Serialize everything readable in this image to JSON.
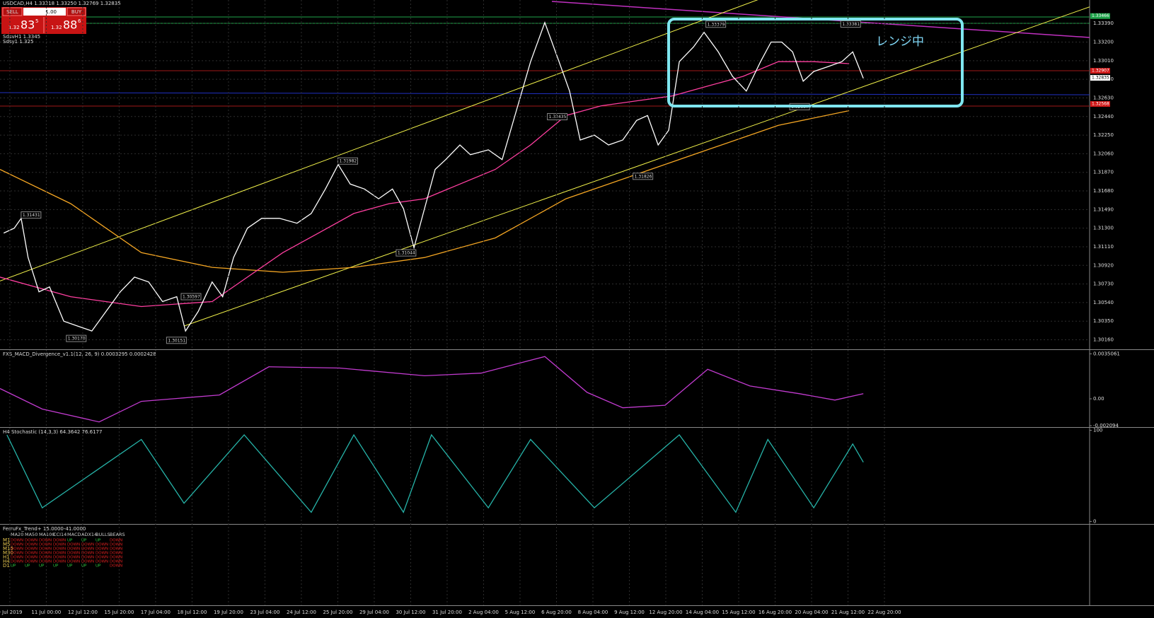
{
  "header": {
    "symbol_line": "USDCAD,H4  1.33218 1.33250 1.32769 1.32835"
  },
  "trade_panel": {
    "sell": "SELL",
    "lot": "1.00",
    "buy": "BUY",
    "sell_price": {
      "big": "1.32",
      "pips": "83",
      "frac": "5"
    },
    "buy_price": {
      "big": "1.32",
      "pips": "88",
      "frac": "6"
    }
  },
  "indicator_labels": [
    "SdsvH1 1.3345",
    "Sdsy1 1.325"
  ],
  "chart_data": [
    {
      "type": "line",
      "categories": [
        "9 Jul 2019",
        "11 Jul 00:00",
        "12 Jul 12:00",
        "15 Jul 20:00",
        "17 Jul 04:00",
        "18 Jul 12:00",
        "19 Jul 20:00",
        "23 Jul 04:00",
        "24 Jul 12:00",
        "25 Jul 20:00",
        "29 Jul 04:00",
        "30 Jul 12:00",
        "31 Jul 20:00",
        "2 Aug 04:00",
        "5 Aug 12:00",
        "6 Aug 20:00",
        "8 Aug 04:00",
        "9 Aug 12:00",
        "12 Aug 20:00",
        "14 Aug 04:00",
        "15 Aug 12:00",
        "16 Aug 20:00",
        "20 Aug 04:00",
        "21 Aug 12:00",
        "22 Aug 20:00"
      ],
      "xlim": [
        -0.27,
        29.63
      ],
      "ylim": [
        1.3007,
        1.3363
      ],
      "yticks": [
        {
          "value": 1.3339,
          "label": "1.33390"
        },
        {
          "value": 1.332,
          "label": "1.33200"
        },
        {
          "value": 1.3301,
          "label": "1.33010"
        },
        {
          "value": 1.3282,
          "label": "1.32820"
        },
        {
          "value": 1.3263,
          "label": "1.32630"
        },
        {
          "value": 1.3244,
          "label": "1.32440"
        },
        {
          "value": 1.3225,
          "label": "1.32250"
        },
        {
          "value": 1.3206,
          "label": "1.32060"
        },
        {
          "value": 1.3187,
          "label": "1.31870"
        },
        {
          "value": 1.3168,
          "label": "1.31680"
        },
        {
          "value": 1.3149,
          "label": "1.31490"
        },
        {
          "value": 1.313,
          "label": "1.31300"
        },
        {
          "value": 1.3111,
          "label": "1.31110"
        },
        {
          "value": 1.3092,
          "label": "1.30920"
        },
        {
          "value": 1.3073,
          "label": "1.30730"
        },
        {
          "value": 1.3054,
          "label": "1.30540"
        },
        {
          "value": 1.3035,
          "label": "1.30350"
        },
        {
          "value": 1.3016,
          "label": "1.30160"
        }
      ],
      "grid": true,
      "series": [
        {
          "color": "#f5a623",
          "x": [
            -0.27,
            1.67,
            3.61,
            5.55,
            7.49,
            9.44,
            11.38,
            13.32,
            15.26,
            17.2,
            19.14,
            21.09,
            23.03
          ],
          "values": [
            1.319,
            1.3155,
            1.3105,
            1.309,
            1.3085,
            1.309,
            1.31,
            1.312,
            1.316,
            1.3185,
            1.321,
            1.3235,
            1.325
          ]
        },
        {
          "color": "#ff3fa0",
          "x": [
            -0.27,
            1.67,
            3.61,
            5.55,
            6.52,
            7.49,
            8.47,
            9.44,
            10.41,
            11.38,
            12.35,
            13.32,
            14.29,
            15.26,
            16.23,
            17.2,
            18.17,
            19.14,
            20.12,
            21.09,
            22.06,
            23.03
          ],
          "values": [
            1.308,
            1.306,
            1.305,
            1.3055,
            1.308,
            1.3105,
            1.3125,
            1.3145,
            1.3155,
            1.316,
            1.3175,
            1.319,
            1.3215,
            1.3245,
            1.3255,
            1.326,
            1.3265,
            1.3275,
            1.3285,
            1.33,
            1.33,
            1.3298
          ]
        },
        {
          "color": "#ffffff",
          "x": [
            -0.17,
            0.12,
            0.31,
            0.5,
            0.8,
            1.09,
            1.48,
            1.86,
            2.25,
            2.64,
            3.03,
            3.42,
            3.81,
            4.19,
            4.58,
            4.82,
            5.17,
            5.55,
            5.84,
            6.14,
            6.52,
            6.91,
            7.4,
            7.88,
            8.27,
            8.66,
            9.01,
            9.34,
            9.73,
            10.12,
            10.5,
            10.8,
            11.09,
            11.38,
            11.67,
            11.96,
            12.35,
            12.64,
            13.13,
            13.51,
            13.9,
            14.29,
            14.68,
            15.07,
            15.36,
            15.65,
            16.04,
            16.43,
            16.82,
            17.2,
            17.5,
            17.79,
            18.08,
            18.37,
            18.76,
            19.05,
            19.44,
            19.83,
            20.21,
            20.6,
            20.89,
            21.18,
            21.48,
            21.77,
            22.06,
            22.45,
            22.83,
            23.13,
            23.42
          ],
          "values": [
            1.3125,
            1.313,
            1.314,
            1.31,
            1.3065,
            1.307,
            1.3035,
            1.303,
            1.3025,
            1.3045,
            1.3065,
            1.308,
            1.3075,
            1.3055,
            1.306,
            1.3025,
            1.3045,
            1.3075,
            1.306,
            1.31,
            1.313,
            1.314,
            1.314,
            1.3135,
            1.3145,
            1.317,
            1.3195,
            1.3175,
            1.317,
            1.316,
            1.317,
            1.315,
            1.311,
            1.315,
            1.319,
            1.32,
            1.3215,
            1.3205,
            1.321,
            1.32,
            1.325,
            1.33,
            1.334,
            1.33,
            1.327,
            1.322,
            1.3225,
            1.3215,
            1.322,
            1.324,
            1.3245,
            1.3215,
            1.323,
            1.33,
            1.3315,
            1.333,
            1.331,
            1.3285,
            1.327,
            1.33,
            1.332,
            1.332,
            1.331,
            1.328,
            1.329,
            1.3295,
            1.33,
            1.331,
            1.3283
          ]
        }
      ],
      "trendlines": [
        {
          "color": "#f2f24a",
          "x": [
            -0.27,
            29.05
          ],
          "values": [
            1.3076,
            1.3481
          ]
        },
        {
          "color": "#f2f24a",
          "x": [
            4.78,
            29.63
          ],
          "values": [
            1.303,
            1.3356
          ]
        }
      ],
      "swing_points": [
        {
          "value": 1.31431,
          "label": "1.31431",
          "x": 0.31
        },
        {
          "value": 1.3017,
          "label": "1.30170",
          "x": 1.55
        },
        {
          "value": 1.30597,
          "label": "1.30597",
          "x": 4.7
        },
        {
          "value": 1.30151,
          "label": "1.30151",
          "x": 4.3
        },
        {
          "value": 1.31982,
          "label": "1.31982",
          "x": 9.0
        },
        {
          "value": 1.31044,
          "label": "1.31044",
          "x": 10.6
        },
        {
          "value": 1.32435,
          "label": "1.32435",
          "x": 14.75
        },
        {
          "value": 1.31826,
          "label": "1.31826",
          "x": 17.1
        },
        {
          "value": 1.33379,
          "label": "1.33379",
          "x": 19.1
        },
        {
          "value": 1.32537,
          "label": "1.32537",
          "x": 21.4
        },
        {
          "value": 1.33381,
          "label": "1.33381",
          "x": 22.8
        }
      ],
      "price_tags": [
        {
          "value": 1.33466,
          "label": "1.33466",
          "color": "#1fa34a"
        },
        {
          "value": 1.32907,
          "label": "1.32907",
          "color": "#d01818"
        },
        {
          "value": 1.32835,
          "label": "1.32835",
          "color": "#ffffff"
        },
        {
          "value": 1.32568,
          "label": "1.32568",
          "color": "#d01818"
        }
      ],
      "annotation": "レンジ中"
    },
    {
      "type": "line",
      "title": "FXS_MACD_Divergence_v1.1(12, 26, 9) 0.0003295 0.0002428",
      "xlim": [
        -0.27,
        29.63
      ],
      "ylim": [
        -0.00215,
        0.00375
      ],
      "yticks": [
        0.0035061,
        {
          "value": 0,
          "label": "0.00"
        },
        -0.002094
      ],
      "series": [
        {
          "color": "#c23bd0",
          "x": [
            -0.27,
            0.89,
            2.45,
            3.61,
            5.75,
            7.11,
            9.05,
            11.38,
            12.93,
            14.68,
            15.84,
            16.82,
            17.98,
            19.15,
            20.31,
            21.67,
            22.64,
            23.42
          ],
          "values": [
            0.0008,
            -0.0008,
            -0.0018,
            -0.0002,
            0.0003,
            0.0025,
            0.0024,
            0.0018,
            0.002,
            0.0033,
            0.0005,
            -0.0007,
            -0.0005,
            0.0023,
            0.001,
            0.0004,
            -0.0001,
            0.0004
          ]
        }
      ]
    },
    {
      "type": "line",
      "title": "H4 Stochastic (14,3,3) 64.3642 76.6177",
      "xlim": [
        -0.27,
        29.63
      ],
      "ylim": [
        -2,
        102
      ],
      "yticks": [
        100,
        0
      ],
      "series": [
        {
          "color": "#26b3a8",
          "x": [
            -0.08,
            0.89,
            3.61,
            4.78,
            6.43,
            8.27,
            9.44,
            10.8,
            11.57,
            13.13,
            14.29,
            16.04,
            18.37,
            19.92,
            20.8,
            22.06,
            23.13,
            23.42
          ],
          "values": [
            95,
            15,
            90,
            20,
            95,
            10,
            95,
            10,
            95,
            15,
            90,
            15,
            95,
            10,
            90,
            15,
            85,
            65
          ]
        }
      ]
    }
  ],
  "trend_table": {
    "title": "FerruFx_Trend+ 15.0000-41.0000",
    "columns": [
      "MA20",
      "MA50",
      "MA100",
      "CCI14",
      "MACD",
      "ADX14",
      "BULLS",
      "BEARS"
    ],
    "rows": [
      {
        "tf": "M1",
        "cells": [
          "DOWN",
          "DOWN",
          "DOWN",
          "DOWN",
          "UP",
          "UP",
          "UP",
          "DOWN"
        ]
      },
      {
        "tf": "M5",
        "cells": [
          "DOWN",
          "DOWN",
          "DOWN",
          "DOWN",
          "DOWN",
          "DOWN",
          "DOWN",
          "DOWN"
        ]
      },
      {
        "tf": "M15",
        "cells": [
          "DOWN",
          "DOWN",
          "DOWN",
          "DOWN",
          "DOWN",
          "DOWN",
          "DOWN",
          "DOWN"
        ]
      },
      {
        "tf": "M30",
        "cells": [
          "DOWN",
          "DOWN",
          "DOWN",
          "DOWN",
          "DOWN",
          "DOWN",
          "DOWN",
          "DOWN"
        ]
      },
      {
        "tf": "H1",
        "cells": [
          "DOWN",
          "DOWN",
          "DOWN",
          "DOWN",
          "DOWN",
          "DOWN",
          "DOWN",
          "DOWN"
        ]
      },
      {
        "tf": "H4",
        "cells": [
          "DOWN",
          "DOWN",
          "DOWN",
          "DOWN",
          "DOWN",
          "DOWN",
          "DOWN",
          "DOWN"
        ]
      },
      {
        "tf": "D1",
        "cells": [
          "UP",
          "UP",
          "UP",
          "UP",
          "UP",
          "UP",
          "UP",
          "DOWN"
        ]
      }
    ]
  }
}
